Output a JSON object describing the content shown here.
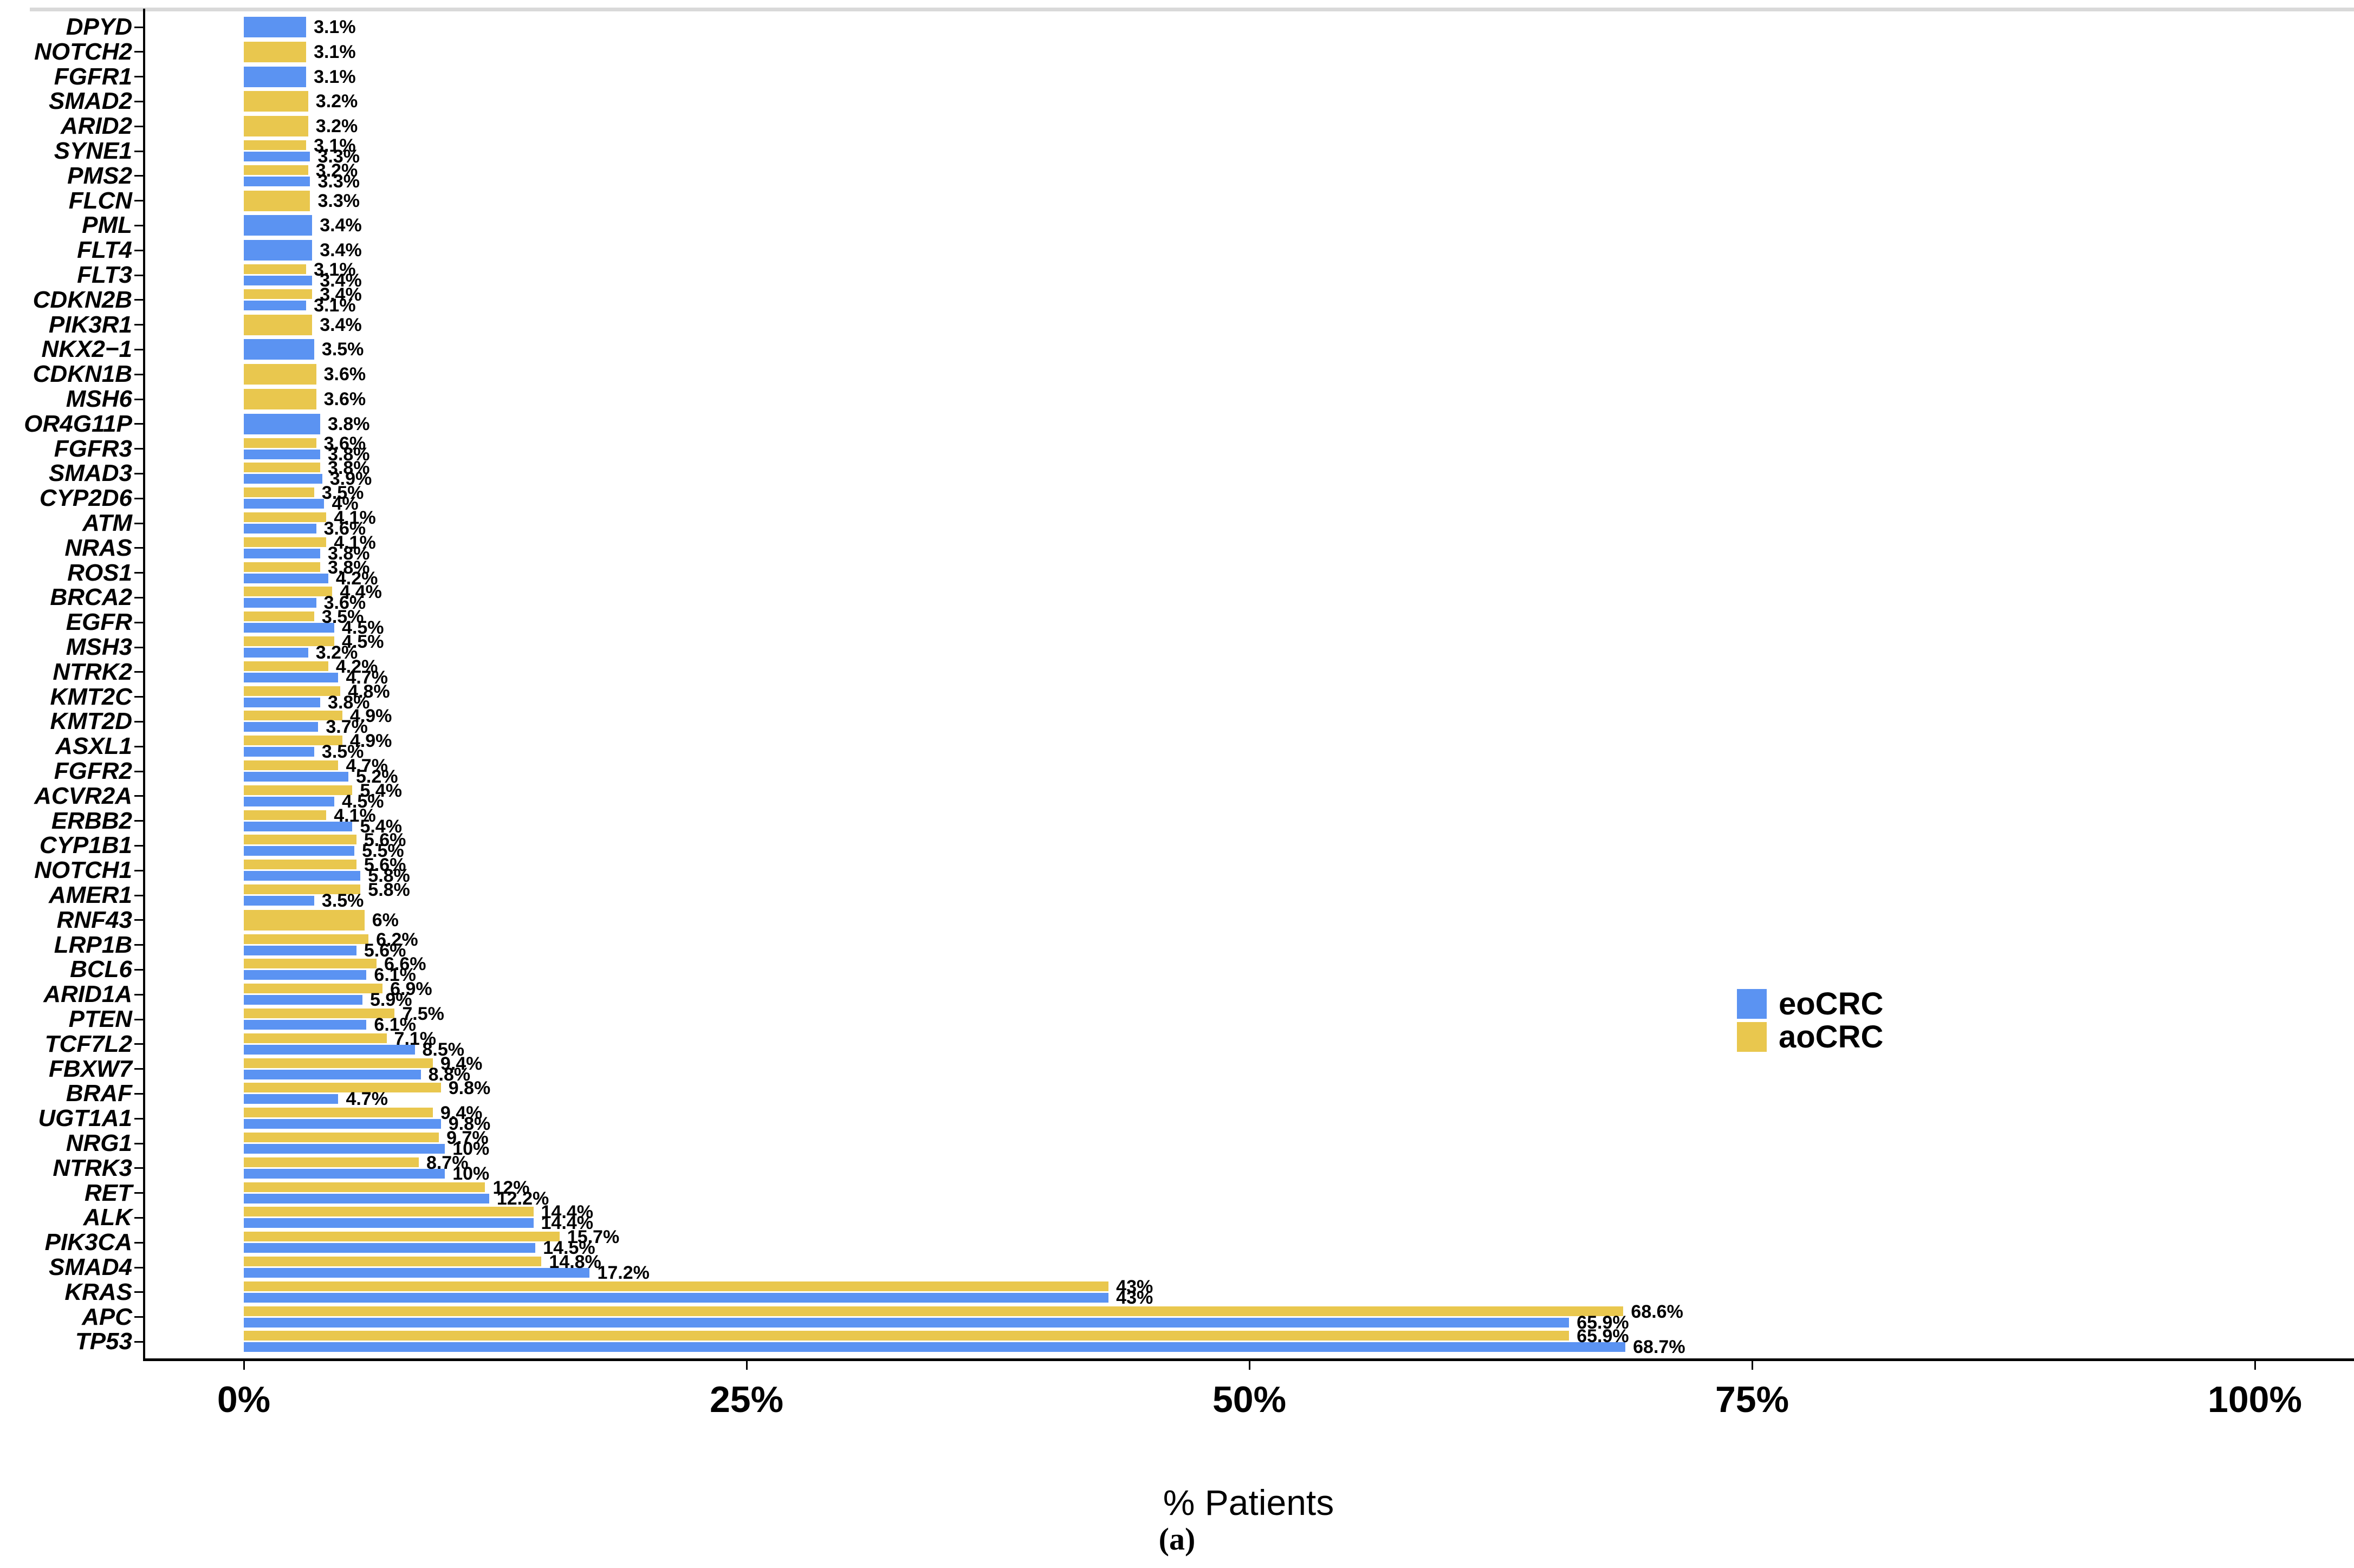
{
  "figure": {
    "caption": "(a)",
    "top_strip_color": "#d9d9d9",
    "background": "#ffffff"
  },
  "chart_data": {
    "type": "bar",
    "orientation": "horizontal",
    "title": "",
    "xlabel": "% Patients",
    "ylabel": "",
    "xlim": [
      0,
      100
    ],
    "grid": false,
    "x_axis": {
      "ticks": [
        {
          "value": 0,
          "label": "0%"
        },
        {
          "value": 25,
          "label": "25%"
        },
        {
          "value": 50,
          "label": "50%"
        },
        {
          "value": 75,
          "label": "75%"
        },
        {
          "value": 100,
          "label": "100%"
        }
      ]
    },
    "legend": {
      "position": "right-middle",
      "entries": [
        {
          "name": "eoCRC",
          "color": "#5b93f2"
        },
        {
          "name": "aoCRC",
          "color": "#e9c74e"
        }
      ]
    },
    "group_order_note": "within each gene group the aoCRC (yellow) bar is on top, eoCRC (blue) below; single bars are drawn full-width",
    "genes": [
      {
        "gene": "DPYD",
        "eoCRC": 3.1,
        "eoCRC_label": "3.1%",
        "aoCRC": null,
        "aoCRC_label": null
      },
      {
        "gene": "NOTCH2",
        "eoCRC": null,
        "eoCRC_label": null,
        "aoCRC": 3.1,
        "aoCRC_label": "3.1%"
      },
      {
        "gene": "FGFR1",
        "eoCRC": 3.1,
        "eoCRC_label": "3.1%",
        "aoCRC": null,
        "aoCRC_label": null
      },
      {
        "gene": "SMAD2",
        "eoCRC": null,
        "eoCRC_label": null,
        "aoCRC": 3.2,
        "aoCRC_label": "3.2%"
      },
      {
        "gene": "ARID2",
        "eoCRC": null,
        "eoCRC_label": null,
        "aoCRC": 3.2,
        "aoCRC_label": "3.2%"
      },
      {
        "gene": "SYNE1",
        "eoCRC": 3.3,
        "eoCRC_label": "3.3%",
        "aoCRC": 3.1,
        "aoCRC_label": "3.1%"
      },
      {
        "gene": "PMS2",
        "eoCRC": 3.3,
        "eoCRC_label": "3.3%",
        "aoCRC": 3.2,
        "aoCRC_label": "3.2%"
      },
      {
        "gene": "FLCN",
        "eoCRC": null,
        "eoCRC_label": null,
        "aoCRC": 3.3,
        "aoCRC_label": "3.3%"
      },
      {
        "gene": "PML",
        "eoCRC": 3.4,
        "eoCRC_label": "3.4%",
        "aoCRC": null,
        "aoCRC_label": null
      },
      {
        "gene": "FLT4",
        "eoCRC": 3.4,
        "eoCRC_label": "3.4%",
        "aoCRC": null,
        "aoCRC_label": null
      },
      {
        "gene": "FLT3",
        "eoCRC": 3.4,
        "eoCRC_label": "3.4%",
        "aoCRC": 3.1,
        "aoCRC_label": "3.1%"
      },
      {
        "gene": "CDKN2B",
        "eoCRC": 3.1,
        "eoCRC_label": "3.1%",
        "aoCRC": 3.4,
        "aoCRC_label": "3.4%"
      },
      {
        "gene": "PIK3R1",
        "eoCRC": null,
        "eoCRC_label": null,
        "aoCRC": 3.4,
        "aoCRC_label": "3.4%"
      },
      {
        "gene": "NKX2−1",
        "eoCRC": 3.5,
        "eoCRC_label": "3.5%",
        "aoCRC": null,
        "aoCRC_label": null
      },
      {
        "gene": "CDKN1B",
        "eoCRC": null,
        "eoCRC_label": null,
        "aoCRC": 3.6,
        "aoCRC_label": "3.6%"
      },
      {
        "gene": "MSH6",
        "eoCRC": null,
        "eoCRC_label": null,
        "aoCRC": 3.6,
        "aoCRC_label": "3.6%"
      },
      {
        "gene": "OR4G11P",
        "eoCRC": 3.8,
        "eoCRC_label": "3.8%",
        "aoCRC": null,
        "aoCRC_label": null
      },
      {
        "gene": "FGFR3",
        "eoCRC": 3.8,
        "eoCRC_label": "3.8%",
        "aoCRC": 3.6,
        "aoCRC_label": "3.6%"
      },
      {
        "gene": "SMAD3",
        "eoCRC": 3.9,
        "eoCRC_label": "3.9%",
        "aoCRC": 3.8,
        "aoCRC_label": "3.8%"
      },
      {
        "gene": "CYP2D6",
        "eoCRC": 4,
        "eoCRC_label": "4%",
        "aoCRC": 3.5,
        "aoCRC_label": "3.5%"
      },
      {
        "gene": "ATM",
        "eoCRC": 3.6,
        "eoCRC_label": "3.6%",
        "aoCRC": 4.1,
        "aoCRC_label": "4.1%"
      },
      {
        "gene": "NRAS",
        "eoCRC": 3.8,
        "eoCRC_label": "3.8%",
        "aoCRC": 4.1,
        "aoCRC_label": "4.1%"
      },
      {
        "gene": "ROS1",
        "eoCRC": 4.2,
        "eoCRC_label": "4.2%",
        "aoCRC": 3.8,
        "aoCRC_label": "3.8%"
      },
      {
        "gene": "BRCA2",
        "eoCRC": 3.6,
        "eoCRC_label": "3.6%",
        "aoCRC": 4.4,
        "aoCRC_label": "4.4%"
      },
      {
        "gene": "EGFR",
        "eoCRC": 4.5,
        "eoCRC_label": "4.5%",
        "aoCRC": 3.5,
        "aoCRC_label": "3.5%"
      },
      {
        "gene": "MSH3",
        "eoCRC": 3.2,
        "eoCRC_label": "3.2%",
        "aoCRC": 4.5,
        "aoCRC_label": "4.5%"
      },
      {
        "gene": "NTRK2",
        "eoCRC": 4.7,
        "eoCRC_label": "4.7%",
        "aoCRC": 4.2,
        "aoCRC_label": "4.2%"
      },
      {
        "gene": "KMT2C",
        "eoCRC": 3.8,
        "eoCRC_label": "3.8%",
        "aoCRC": 4.8,
        "aoCRC_label": "4.8%"
      },
      {
        "gene": "KMT2D",
        "eoCRC": 3.7,
        "eoCRC_label": "3.7%",
        "aoCRC": 4.9,
        "aoCRC_label": "4.9%"
      },
      {
        "gene": "ASXL1",
        "eoCRC": 3.5,
        "eoCRC_label": "3.5%",
        "aoCRC": 4.9,
        "aoCRC_label": "4.9%"
      },
      {
        "gene": "FGFR2",
        "eoCRC": 5.2,
        "eoCRC_label": "5.2%",
        "aoCRC": 4.7,
        "aoCRC_label": "4.7%"
      },
      {
        "gene": "ACVR2A",
        "eoCRC": 4.5,
        "eoCRC_label": "4.5%",
        "aoCRC": 5.4,
        "aoCRC_label": "5.4%"
      },
      {
        "gene": "ERBB2",
        "eoCRC": 5.4,
        "eoCRC_label": "5.4%",
        "aoCRC": 4.1,
        "aoCRC_label": "4.1%"
      },
      {
        "gene": "CYP1B1",
        "eoCRC": 5.5,
        "eoCRC_label": "5.5%",
        "aoCRC": 5.6,
        "aoCRC_label": "5.6%"
      },
      {
        "gene": "NOTCH1",
        "eoCRC": 5.8,
        "eoCRC_label": "5.8%",
        "aoCRC": 5.6,
        "aoCRC_label": "5.6%"
      },
      {
        "gene": "AMER1",
        "eoCRC": 3.5,
        "eoCRC_label": "3.5%",
        "aoCRC": 5.8,
        "aoCRC_label": "5.8%"
      },
      {
        "gene": "RNF43",
        "eoCRC": null,
        "eoCRC_label": null,
        "aoCRC": 6,
        "aoCRC_label": "6%"
      },
      {
        "gene": "LRP1B",
        "eoCRC": 5.6,
        "eoCRC_label": "5.6%",
        "aoCRC": 6.2,
        "aoCRC_label": "6.2%"
      },
      {
        "gene": "BCL6",
        "eoCRC": 6.1,
        "eoCRC_label": "6.1%",
        "aoCRC": 6.6,
        "aoCRC_label": "6.6%"
      },
      {
        "gene": "ARID1A",
        "eoCRC": 5.9,
        "eoCRC_label": "5.9%",
        "aoCRC": 6.9,
        "aoCRC_label": "6.9%"
      },
      {
        "gene": "PTEN",
        "eoCRC": 6.1,
        "eoCRC_label": "6.1%",
        "aoCRC": 7.5,
        "aoCRC_label": "7.5%"
      },
      {
        "gene": "TCF7L2",
        "eoCRC": 8.5,
        "eoCRC_label": "8.5%",
        "aoCRC": 7.1,
        "aoCRC_label": "7.1%"
      },
      {
        "gene": "FBXW7",
        "eoCRC": 8.8,
        "eoCRC_label": "8.8%",
        "aoCRC": 9.4,
        "aoCRC_label": "9.4%"
      },
      {
        "gene": "BRAF",
        "eoCRC": 4.7,
        "eoCRC_label": "4.7%",
        "aoCRC": 9.8,
        "aoCRC_label": "9.8%"
      },
      {
        "gene": "UGT1A1",
        "eoCRC": 9.8,
        "eoCRC_label": "9.8%",
        "aoCRC": 9.4,
        "aoCRC_label": "9.4%"
      },
      {
        "gene": "NRG1",
        "eoCRC": 10,
        "eoCRC_label": "10%",
        "aoCRC": 9.7,
        "aoCRC_label": "9.7%"
      },
      {
        "gene": "NTRK3",
        "eoCRC": 10,
        "eoCRC_label": "10%",
        "aoCRC": 8.7,
        "aoCRC_label": "8.7%"
      },
      {
        "gene": "RET",
        "eoCRC": 12.2,
        "eoCRC_label": "12.2%",
        "aoCRC": 12,
        "aoCRC_label": "12%"
      },
      {
        "gene": "ALK",
        "eoCRC": 14.4,
        "eoCRC_label": "14.4%",
        "aoCRC": 14.4,
        "aoCRC_label": "14.4%"
      },
      {
        "gene": "PIK3CA",
        "eoCRC": 14.5,
        "eoCRC_label": "14.5%",
        "aoCRC": 15.7,
        "aoCRC_label": "15.7%"
      },
      {
        "gene": "SMAD4",
        "eoCRC": 17.2,
        "eoCRC_label": "17.2%",
        "aoCRC": 14.8,
        "aoCRC_label": "14.8%"
      },
      {
        "gene": "KRAS",
        "eoCRC": 43,
        "eoCRC_label": "43%",
        "aoCRC": 43,
        "aoCRC_label": "43%"
      },
      {
        "gene": "APC",
        "eoCRC": 65.9,
        "eoCRC_label": "65.9%",
        "aoCRC": 68.6,
        "aoCRC_label": "68.6%"
      },
      {
        "gene": "TP53",
        "eoCRC": 68.7,
        "eoCRC_label": "68.7%",
        "aoCRC": 65.9,
        "aoCRC_label": "65.9%"
      }
    ]
  }
}
